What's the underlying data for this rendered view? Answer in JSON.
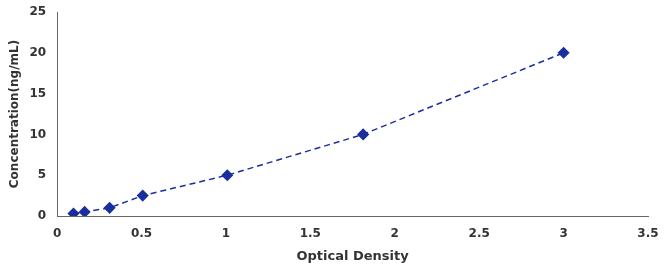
{
  "chart_data": {
    "type": "line",
    "x": [
      0.097,
      0.163,
      0.311,
      0.507,
      1.008,
      1.813,
      3.0
    ],
    "values": [
      0.313,
      0.5,
      1.0,
      2.5,
      5.0,
      10.0,
      20.0
    ],
    "xlabel": "Optical Density",
    "ylabel": "Concentration(ng/mL)",
    "xlim": [
      0,
      3.5
    ],
    "ylim": [
      0,
      25
    ],
    "xticks": [
      0,
      0.5,
      1,
      1.5,
      2,
      2.5,
      3,
      3.5
    ],
    "yticks": [
      0,
      5,
      10,
      15,
      20,
      25
    ],
    "color": "#1a2f9e",
    "marker": "diamond",
    "line_style": "dashed",
    "grid": false
  }
}
